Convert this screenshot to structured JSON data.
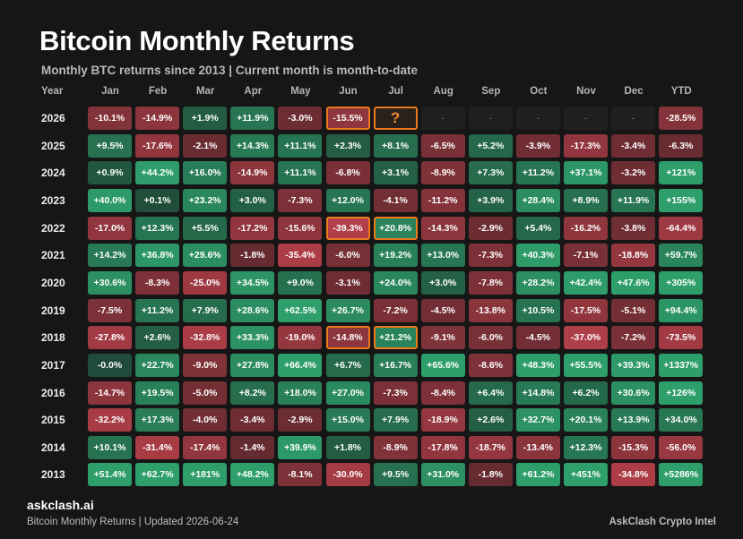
{
  "title": "Bitcoin Monthly Returns",
  "subtitle": "Monthly BTC returns since 2013 | Current month is month-to-date",
  "brand": "askclash.ai",
  "footer_left": "Bitcoin Monthly Returns | Updated 2026-06-24",
  "footer_right": "AskClash Crypto Intel",
  "colors": {
    "background": "#161616",
    "highlight": "#ec7a1c",
    "positive": "#2e9e6b",
    "negative": "#b8404a",
    "empty": "#1f1f1f"
  },
  "chart_data": {
    "type": "heatmap",
    "row_header": "Year",
    "columns": [
      "Jan",
      "Feb",
      "Mar",
      "Apr",
      "May",
      "Jun",
      "Jul",
      "Aug",
      "Sep",
      "Oct",
      "Nov",
      "Dec",
      "YTD"
    ],
    "rows": [
      {
        "year": "2026",
        "cells": [
          "-10.1%",
          "-14.9%",
          "+1.9%",
          "+11.9%",
          "-3.0%",
          "-15.5%",
          "?",
          "-",
          "-",
          "-",
          "-",
          "-",
          "-28.5%"
        ]
      },
      {
        "year": "2025",
        "cells": [
          "+9.5%",
          "-17.6%",
          "-2.1%",
          "+14.3%",
          "+11.1%",
          "+2.3%",
          "+8.1%",
          "-6.5%",
          "+5.2%",
          "-3.9%",
          "-17.3%",
          "-3.4%",
          "-6.3%"
        ]
      },
      {
        "year": "2024",
        "cells": [
          "+0.9%",
          "+44.2%",
          "+16.0%",
          "-14.9%",
          "+11.1%",
          "-6.8%",
          "+3.1%",
          "-8.9%",
          "+7.3%",
          "+11.2%",
          "+37.1%",
          "-3.2%",
          "+121%"
        ]
      },
      {
        "year": "2023",
        "cells": [
          "+40.0%",
          "+0.1%",
          "+23.2%",
          "+3.0%",
          "-7.3%",
          "+12.0%",
          "-4.1%",
          "-11.2%",
          "+3.9%",
          "+28.4%",
          "+8.9%",
          "+11.9%",
          "+155%"
        ]
      },
      {
        "year": "2022",
        "cells": [
          "-17.0%",
          "+12.3%",
          "+5.5%",
          "-17.2%",
          "-15.6%",
          "-39.3%",
          "+20.8%",
          "-14.3%",
          "-2.9%",
          "+5.4%",
          "-16.2%",
          "-3.8%",
          "-64.4%"
        ]
      },
      {
        "year": "2021",
        "cells": [
          "+14.2%",
          "+36.8%",
          "+29.6%",
          "-1.8%",
          "-35.4%",
          "-6.0%",
          "+19.2%",
          "+13.0%",
          "-7.3%",
          "+40.3%",
          "-7.1%",
          "-18.8%",
          "+59.7%"
        ]
      },
      {
        "year": "2020",
        "cells": [
          "+30.6%",
          "-8.3%",
          "-25.0%",
          "+34.5%",
          "+9.0%",
          "-3.1%",
          "+24.0%",
          "+3.0%",
          "-7.8%",
          "+28.2%",
          "+42.4%",
          "+47.6%",
          "+305%"
        ]
      },
      {
        "year": "2019",
        "cells": [
          "-7.5%",
          "+11.2%",
          "+7.9%",
          "+28.6%",
          "+62.5%",
          "+26.7%",
          "-7.2%",
          "-4.5%",
          "-13.8%",
          "+10.5%",
          "-17.5%",
          "-5.1%",
          "+94.4%"
        ]
      },
      {
        "year": "2018",
        "cells": [
          "-27.8%",
          "+2.6%",
          "-32.8%",
          "+33.3%",
          "-19.0%",
          "-14.8%",
          "+21.2%",
          "-9.1%",
          "-6.0%",
          "-4.5%",
          "-37.0%",
          "-7.2%",
          "-73.5%"
        ]
      },
      {
        "year": "2017",
        "cells": [
          "-0.0%",
          "+22.7%",
          "-9.0%",
          "+27.8%",
          "+66.4%",
          "+6.7%",
          "+16.7%",
          "+65.6%",
          "-8.6%",
          "+48.3%",
          "+55.5%",
          "+39.3%",
          "+1337%"
        ]
      },
      {
        "year": "2016",
        "cells": [
          "-14.7%",
          "+19.5%",
          "-5.0%",
          "+8.2%",
          "+18.0%",
          "+27.0%",
          "-7.3%",
          "-8.4%",
          "+6.4%",
          "+14.8%",
          "+6.2%",
          "+30.6%",
          "+126%"
        ]
      },
      {
        "year": "2015",
        "cells": [
          "-32.2%",
          "+17.3%",
          "-4.0%",
          "-3.4%",
          "-2.9%",
          "+15.0%",
          "+7.9%",
          "-18.9%",
          "+2.6%",
          "+32.7%",
          "+20.1%",
          "+13.9%",
          "+34.0%"
        ]
      },
      {
        "year": "2014",
        "cells": [
          "+10.1%",
          "-31.4%",
          "-17.4%",
          "-1.4%",
          "+39.9%",
          "+1.8%",
          "-8.9%",
          "-17.8%",
          "-18.7%",
          "-13.4%",
          "+12.3%",
          "-15.3%",
          "-56.0%"
        ]
      },
      {
        "year": "2013",
        "cells": [
          "+51.4%",
          "+62.7%",
          "+181%",
          "+48.2%",
          "-8.1%",
          "-30.0%",
          "+9.5%",
          "+31.0%",
          "-1.8%",
          "+61.2%",
          "+451%",
          "-34.8%",
          "+5286%"
        ]
      }
    ],
    "highlighted_cells": [
      {
        "year": "2026",
        "month": "Jun"
      },
      {
        "year": "2026",
        "month": "Jul"
      },
      {
        "year": "2022",
        "month": "Jun"
      },
      {
        "year": "2022",
        "month": "Jul"
      },
      {
        "year": "2018",
        "month": "Jun"
      },
      {
        "year": "2018",
        "month": "Jul"
      }
    ]
  }
}
